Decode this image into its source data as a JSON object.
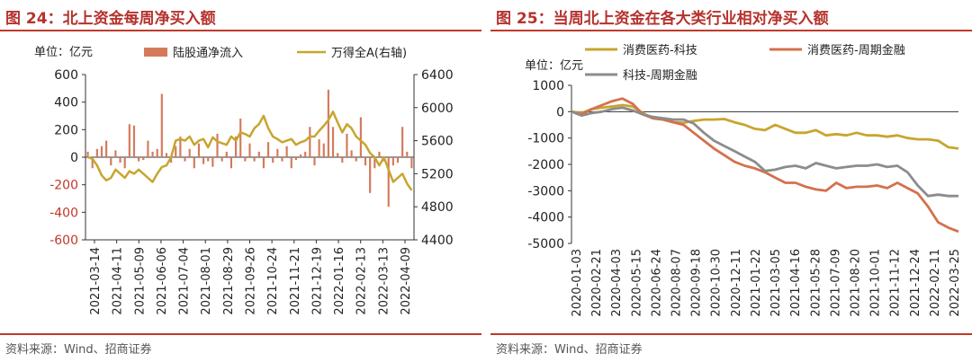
{
  "left": {
    "title": "图 24：北上资金每周净买入额",
    "source": "资料来源：Wind、招商证券",
    "chart_data": {
      "type": "bar+line",
      "unit_label": "单位：亿元",
      "legend": [
        "陆股通净流入",
        "万得全A(右轴)"
      ],
      "colors": {
        "bar": "#d47a5b",
        "line": "#c8a52e",
        "left_axis": "#c0392b"
      },
      "x_tick_labels": [
        "2021-03-14",
        "2021-04-11",
        "2021-05-09",
        "2021-06-06",
        "2021-07-04",
        "2021-08-01",
        "2021-08-29",
        "2021-09-26",
        "2021-10-24",
        "2021-11-21",
        "2021-12-19",
        "2022-01-16",
        "2022-02-13",
        "2022-03-13",
        "2022-04-09"
      ],
      "y_left": {
        "min": -600,
        "max": 600,
        "ticks": [
          -600,
          -400,
          -200,
          0,
          200,
          400,
          600
        ]
      },
      "y_right": {
        "min": 4400,
        "max": 6400,
        "ticks": [
          4400,
          4800,
          5200,
          5600,
          6000,
          6400
        ]
      },
      "series_bar": {
        "name": "陆股通净流入",
        "values": [
          40,
          -80,
          60,
          80,
          120,
          -60,
          50,
          -40,
          -80,
          240,
          230,
          -30,
          -20,
          120,
          40,
          60,
          460,
          30,
          -40,
          80,
          150,
          -30,
          60,
          -80,
          100,
          -50,
          -30,
          -70,
          170,
          -30,
          40,
          -80,
          150,
          280,
          -30,
          100,
          -30,
          40,
          -80,
          110,
          -40,
          60,
          -30,
          80,
          -80,
          -20,
          20,
          40,
          220,
          -60,
          130,
          100,
          490,
          220,
          30,
          -40,
          170,
          50,
          -30,
          290,
          -60,
          -260,
          -80,
          40,
          -30,
          -360,
          -60,
          -40,
          220,
          40,
          -80
        ]
      },
      "series_line": {
        "name": "万得全A(右轴)",
        "values": [
          5400,
          5380,
          5300,
          5180,
          5120,
          5150,
          5250,
          5200,
          5150,
          5230,
          5200,
          5250,
          5200,
          5150,
          5100,
          5200,
          5280,
          5300,
          5400,
          5600,
          5620,
          5600,
          5650,
          5550,
          5600,
          5620,
          5520,
          5640,
          5590,
          5570,
          5550,
          5650,
          5600,
          5700,
          5680,
          5650,
          5750,
          5800,
          5900,
          5750,
          5650,
          5620,
          5580,
          5600,
          5620,
          5550,
          5580,
          5600,
          5650,
          5650,
          5720,
          5780,
          5850,
          5950,
          5820,
          5700,
          5800,
          5750,
          5650,
          5600,
          5550,
          5450,
          5400,
          5300,
          5400,
          5250,
          5100,
          5150,
          5200,
          5080,
          5000
        ]
      }
    }
  },
  "right": {
    "title": "图 25：当周北上资金在各大类行业相对净买入额",
    "source": "资料来源：Wind、招商证券",
    "chart_data": {
      "type": "line",
      "unit_label": "单位：亿元",
      "x_tick_labels": [
        "2020-01-03",
        "2020-02-21",
        "2020-04-03",
        "2020-05-15",
        "2020-06-24",
        "2020-08-07",
        "2020-09-18",
        "2020-10-30",
        "2020-12-11",
        "2021-01-22",
        "2021-03-05",
        "2021-04-16",
        "2021-05-28",
        "2021-07-09",
        "2021-08-20",
        "2021-10-01",
        "2021-11-12",
        "2021-12-24",
        "2022-02-11",
        "2022-03-25"
      ],
      "y": {
        "min": -5000,
        "max": 1000,
        "ticks": [
          -5000,
          -4000,
          -3000,
          -2000,
          -1000,
          0,
          1000
        ]
      },
      "series": [
        {
          "name": "消费医药-科技",
          "color": "#c8a52e",
          "values": [
            0,
            -50,
            100,
            150,
            200,
            250,
            200,
            -50,
            -250,
            -300,
            -400,
            -420,
            -350,
            -300,
            -300,
            -280,
            -400,
            -500,
            -650,
            -700,
            -500,
            -650,
            -800,
            -800,
            -700,
            -900,
            -850,
            -900,
            -800,
            -900,
            -900,
            -950,
            -900,
            -1000,
            -1050,
            -1050,
            -1100,
            -1350,
            -1400
          ]
        },
        {
          "name": "消费医药-周期金融",
          "color": "#d4714d",
          "values": [
            0,
            -100,
            100,
            250,
            400,
            500,
            300,
            -100,
            -250,
            -300,
            -400,
            -500,
            -800,
            -1100,
            -1400,
            -1650,
            -1900,
            -2050,
            -2150,
            -2300,
            -2500,
            -2700,
            -2700,
            -2850,
            -2950,
            -3000,
            -2700,
            -2900,
            -2850,
            -2850,
            -2800,
            -2900,
            -2700,
            -2900,
            -3100,
            -3600,
            -4200,
            -4400,
            -4550
          ]
        },
        {
          "name": "科技-周期金融",
          "color": "#8c8c8c",
          "values": [
            0,
            -150,
            -50,
            0,
            100,
            150,
            50,
            -100,
            -200,
            -250,
            -300,
            -300,
            -450,
            -800,
            -1100,
            -1300,
            -1500,
            -1700,
            -1900,
            -2250,
            -2200,
            -2100,
            -2050,
            -2150,
            -1950,
            -2050,
            -2150,
            -2100,
            -2050,
            -2050,
            -2000,
            -2100,
            -2050,
            -2300,
            -2800,
            -3200,
            -3150,
            -3200,
            -3200
          ]
        }
      ]
    }
  }
}
